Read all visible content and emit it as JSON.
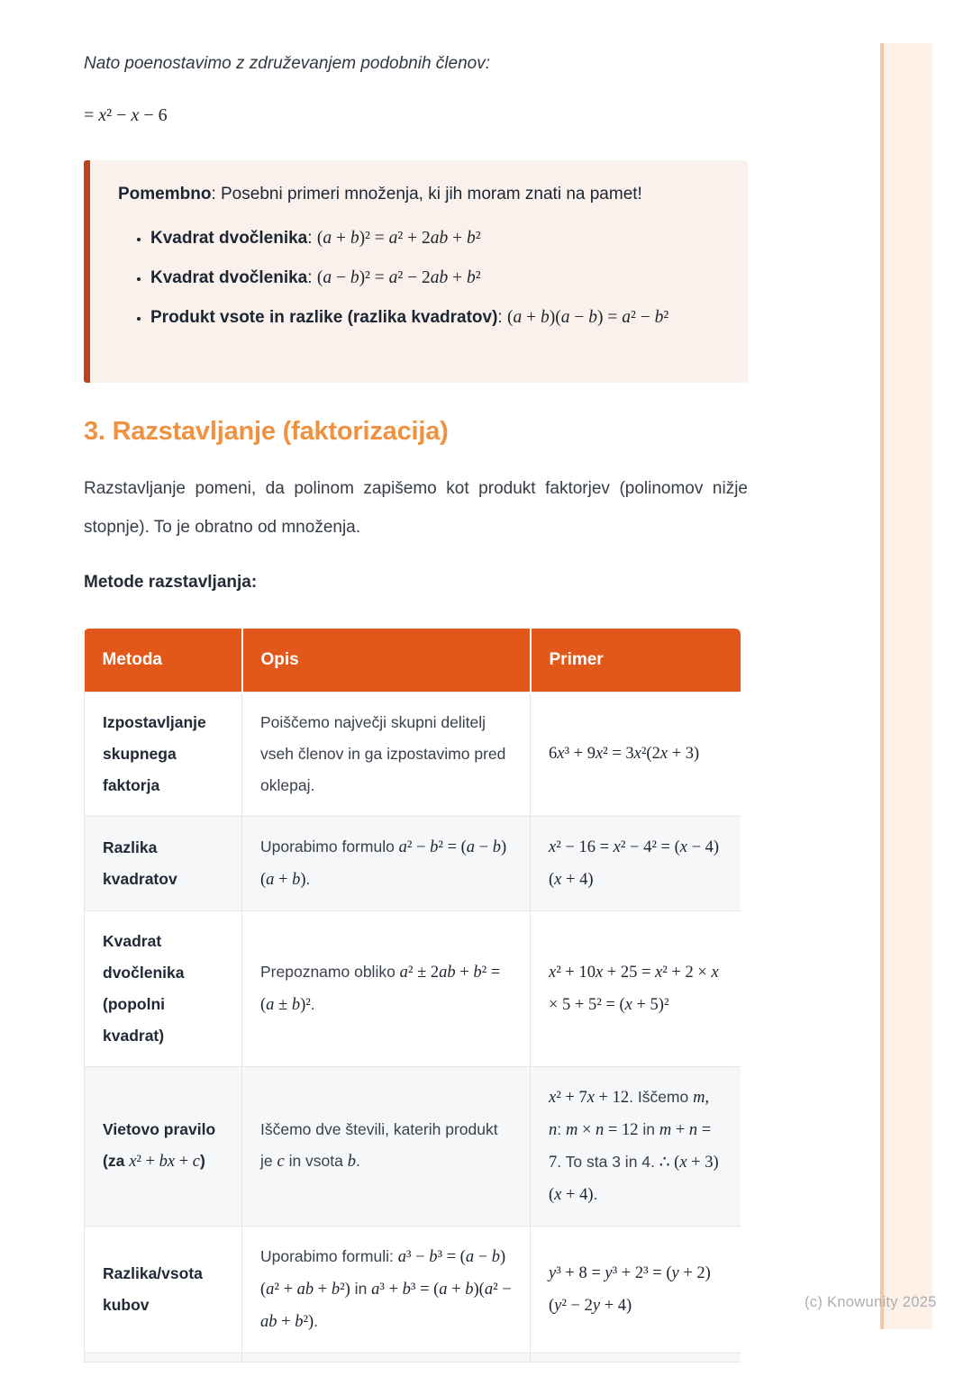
{
  "intro": {
    "sentence": "Nato poenostavimo z združevanjem podobnih členov:",
    "equation": [
      {
        "m": "= x² − x − 6"
      }
    ]
  },
  "callout": {
    "title_line": [
      {
        "b": "Pomembno"
      },
      {
        "t": ": Posebni primeri množenja, ki jih moram znati na pamet!"
      }
    ],
    "bullets": [
      [
        {
          "b": "Kvadrat dvočlenika"
        },
        {
          "t": ": "
        },
        {
          "m": "(a + b)² = a² + 2ab + b²"
        }
      ],
      [
        {
          "b": "Kvadrat dvočlenika"
        },
        {
          "t": ": "
        },
        {
          "m": "(a − b)² = a² − 2ab + b²"
        }
      ],
      [
        {
          "b": "Produkt vsote in razlike (razlika kvadratov)"
        },
        {
          "t": ": "
        },
        {
          "m": "(a + b)(a − b) = a² − b²"
        }
      ]
    ]
  },
  "section": {
    "heading": "3. Razstavljanje (faktorizacija)",
    "paragraph": "Razstavljanje pomeni, da polinom zapišemo kot produkt faktorjev (polinomov nižje stopnje). To je obratno od množenja.",
    "subheading": "Metode razstavljanja:"
  },
  "table": {
    "headers": [
      "Metoda",
      "Opis",
      "Primer"
    ],
    "rows": [
      {
        "method": [
          {
            "b": "Izpostavljanje skupnega faktorja"
          }
        ],
        "desc": [
          {
            "t": "Poiščemo največji skupni delitelj vseh členov in ga izpostavimo pred oklepaj."
          }
        ],
        "example": [
          {
            "m": "6x³ + 9x² = 3x²(2x + 3)"
          }
        ]
      },
      {
        "method": [
          {
            "b": "Razlika kvadratov"
          }
        ],
        "desc": [
          {
            "t": "Uporabimo formulo "
          },
          {
            "m": "a² − b² = (a − b)(a + b)"
          },
          {
            "t": "."
          }
        ],
        "example": [
          {
            "m": "x² − 16 = x² − 4² = (x − 4)(x + 4)"
          }
        ]
      },
      {
        "method": [
          {
            "b": "Kvadrat dvočlenika (popolni kvadrat)"
          }
        ],
        "desc": [
          {
            "t": "Prepoznamo obliko "
          },
          {
            "m": "a² ± 2ab + b² = (a ± b)²"
          },
          {
            "t": "."
          }
        ],
        "example": [
          {
            "m": "x² + 10x + 25 = x² + 2 × x × 5 + 5² = (x + 5)²"
          }
        ]
      },
      {
        "method": [
          {
            "b": "Vietovo pravilo (za "
          },
          {
            "m": "x² + bx + c"
          },
          {
            "b": ")"
          }
        ],
        "desc": [
          {
            "t": "Iščemo dve števili, katerih produkt je "
          },
          {
            "m": "c"
          },
          {
            "t": " in vsota "
          },
          {
            "m": "b"
          },
          {
            "t": "."
          }
        ],
        "example": [
          {
            "m": "x² + 7x + 12"
          },
          {
            "t": ". Iščemo "
          },
          {
            "m": "m, n"
          },
          {
            "t": ": "
          },
          {
            "m": "m × n = 12"
          },
          {
            "t": " in "
          },
          {
            "m": "m + n = 7"
          },
          {
            "t": ". To sta 3 in 4. "
          },
          {
            "m": "∴ (x + 3)(x + 4)"
          },
          {
            "t": "."
          }
        ]
      },
      {
        "method": [
          {
            "b": "Razlika/vsota kubov"
          }
        ],
        "desc": [
          {
            "t": "Uporabimo formuli: "
          },
          {
            "m": "a³ − b³ = (a − b)(a² + ab + b²)"
          },
          {
            "t": " in "
          },
          {
            "m": "a³ + b³ = (a + b)(a² − ab + b²)"
          },
          {
            "t": "."
          }
        ],
        "example": [
          {
            "m": "y³ + 8 = y³ + 2³ = (y + 2)(y² − 2y + 4)"
          }
        ]
      }
    ]
  },
  "footer": {
    "copyright": "(c) Knowunity 2025"
  },
  "colors": {
    "table_header_orange": "#e2581b",
    "heading_orange": "#f0913f",
    "callout_border": "#b9441d",
    "callout_bg": "#faf1ec",
    "edge_bar_bg": "#fdf0e7",
    "edge_bar_edge": "#f3c8a6",
    "row_alt_bg": "#f6f7f9"
  }
}
